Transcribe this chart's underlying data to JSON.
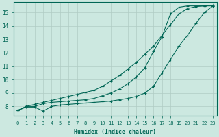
{
  "xlabel": "Humidex (Indice chaleur)",
  "ylabel": "",
  "xlim": [
    -0.5,
    23.5
  ],
  "ylim": [
    7.3,
    15.8
  ],
  "background_color": "#cce8e0",
  "grid_color": "#b0ccc4",
  "line_color": "#006655",
  "line1_x": [
    0,
    1,
    2,
    3,
    4,
    5,
    6,
    7,
    8,
    9,
    10,
    11,
    12,
    13,
    14,
    15,
    16,
    17,
    18,
    19,
    20,
    21,
    22,
    23
  ],
  "line1_y": [
    7.7,
    8.0,
    8.15,
    8.3,
    8.45,
    8.6,
    8.75,
    8.9,
    9.05,
    9.2,
    9.5,
    9.9,
    10.3,
    10.8,
    11.3,
    11.9,
    12.5,
    13.3,
    14.1,
    14.9,
    15.3,
    15.45,
    15.5,
    15.55
  ],
  "line2_x": [
    0,
    1,
    2,
    3,
    4,
    5,
    6,
    7,
    8,
    9,
    10,
    11,
    12,
    13,
    14,
    15,
    16,
    17,
    18,
    19,
    20,
    21,
    22,
    23
  ],
  "line2_y": [
    7.7,
    7.95,
    7.95,
    7.65,
    8.0,
    8.1,
    8.15,
    8.2,
    8.25,
    8.3,
    8.35,
    8.4,
    8.5,
    8.6,
    8.75,
    9.0,
    9.5,
    10.5,
    11.5,
    12.5,
    13.3,
    14.2,
    15.0,
    15.5
  ],
  "line3_x": [
    0,
    1,
    2,
    3,
    4,
    5,
    6,
    7,
    8,
    9,
    10,
    11,
    12,
    13,
    14,
    15,
    16,
    17,
    18,
    19,
    20,
    21,
    22,
    23
  ],
  "line3_y": [
    7.7,
    8.0,
    8.0,
    8.2,
    8.3,
    8.35,
    8.4,
    8.45,
    8.5,
    8.6,
    8.8,
    9.0,
    9.3,
    9.7,
    10.2,
    10.9,
    12.1,
    13.2,
    14.9,
    15.4,
    15.5,
    15.5,
    15.5,
    15.5
  ],
  "xticks": [
    0,
    1,
    2,
    3,
    4,
    5,
    6,
    7,
    8,
    9,
    10,
    11,
    12,
    13,
    14,
    15,
    16,
    17,
    18,
    19,
    20,
    21,
    22,
    23
  ],
  "yticks": [
    8,
    9,
    10,
    11,
    12,
    13,
    14,
    15
  ],
  "figsize": [
    3.2,
    2.0
  ],
  "dpi": 100
}
